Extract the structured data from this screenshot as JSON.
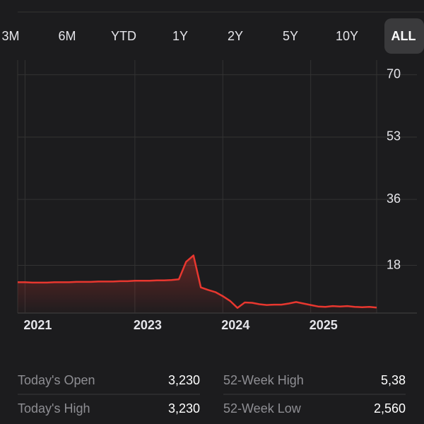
{
  "tabs": [
    "3M",
    "6M",
    "YTD",
    "1Y",
    "2Y",
    "5Y",
    "10Y",
    "ALL"
  ],
  "selected_tab": "ALL",
  "chart_data": {
    "type": "line",
    "color": "#e8372f",
    "categories": [
      null,
      "2021",
      null,
      null,
      null,
      null,
      null,
      null,
      null,
      null,
      null,
      null,
      null,
      null,
      null,
      null,
      "2023",
      null,
      null,
      null,
      null,
      null,
      null,
      null,
      null,
      null,
      null,
      null,
      "2024",
      null,
      null,
      null,
      null,
      null,
      null,
      null,
      null,
      null,
      null,
      null,
      "2025",
      null,
      null,
      null,
      null,
      null,
      null,
      null,
      null,
      null
    ],
    "values": [
      13.4,
      13.4,
      13.3,
      13.3,
      13.3,
      13.4,
      13.4,
      13.4,
      13.5,
      13.5,
      13.5,
      13.6,
      13.6,
      13.6,
      13.7,
      13.7,
      13.8,
      13.8,
      13.8,
      13.9,
      13.9,
      14.0,
      14.2,
      19.0,
      20.7,
      12.0,
      11.3,
      10.7,
      9.6,
      8.3,
      6.4,
      7.9,
      7.8,
      7.4,
      7.2,
      7.3,
      7.3,
      7.6,
      8.0,
      7.6,
      7.2,
      6.8,
      6.7,
      6.9,
      6.8,
      6.9,
      6.7,
      6.6,
      6.7,
      6.5
    ],
    "ylim": [
      5,
      74
    ],
    "yticks": [
      70,
      53,
      36,
      18
    ],
    "grid": true
  },
  "stats": [
    {
      "label": "Today's Open",
      "value": "3,230"
    },
    {
      "label": "52-Week High",
      "value": "5,38"
    },
    {
      "label": "Today's High",
      "value": "3,230"
    },
    {
      "label": "52-Week Low",
      "value": "2,560"
    }
  ]
}
